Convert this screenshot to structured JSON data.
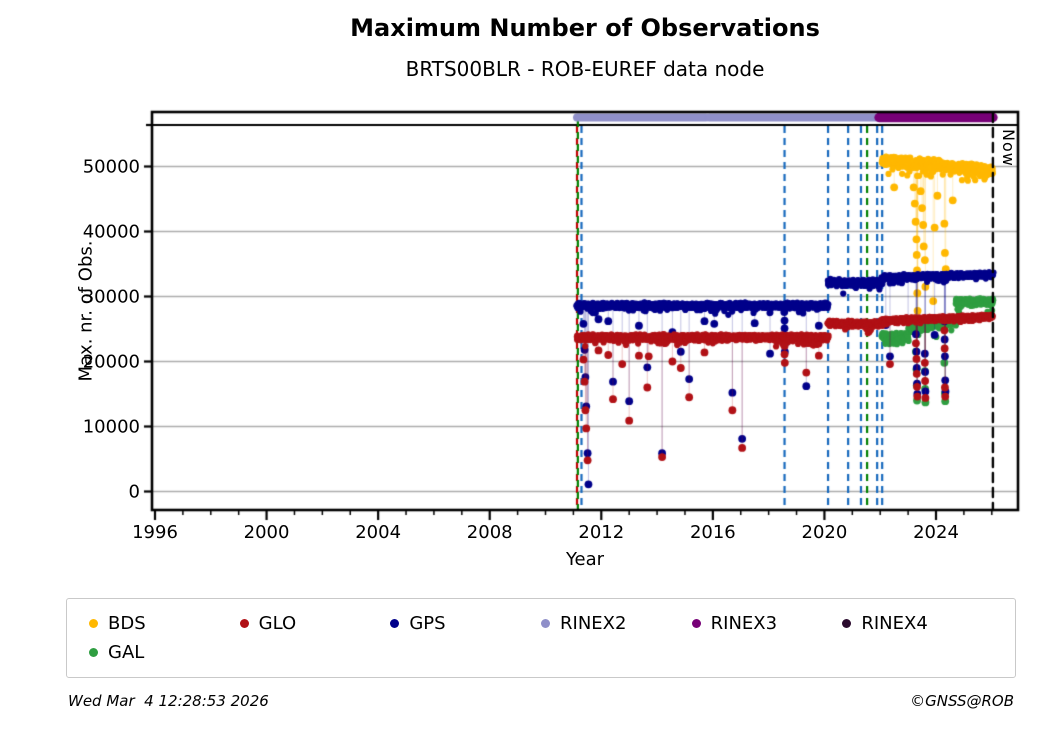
{
  "header": {
    "title": "Maximum Number of Observations",
    "subtitle": "BRTS00BLR - ROB-EUREF data node"
  },
  "footer": {
    "timestamp": "Wed Mar  4 12:28:53 2026",
    "copyright": "©GNSS@ROB"
  },
  "chart_data": {
    "type": "scatter",
    "title": "Maximum Number of Observations",
    "subtitle": "BRTS00BLR - ROB-EUREF data node",
    "xlabel": "Year",
    "ylabel": "Max. nr. of Obs.",
    "xlim": [
      1995.89,
      2026.94
    ],
    "ylim": [
      -2850,
      58380
    ],
    "grid": "horizontal-gray",
    "x_major_ticks": [
      1996,
      2000,
      2004,
      2008,
      2012,
      2016,
      2020,
      2024
    ],
    "x_tick_labels": [
      "1996",
      "2000",
      "2004",
      "2008",
      "2012",
      "2016",
      "2020",
      "2024"
    ],
    "x_minor_from": 1996,
    "x_minor_to": 2026,
    "y_major_ticks": [
      0,
      10000,
      20000,
      30000,
      40000,
      50000
    ],
    "y_tick_labels": [
      "0",
      "10000",
      "20000",
      "30000",
      "40000",
      "50000"
    ],
    "now_line": {
      "x": 2026.04,
      "label": "Now",
      "color": "#000000"
    },
    "rinex_bars": [
      {
        "label": "RINEX2",
        "from": 2011.13,
        "to": 2021.96,
        "color": "#8F8FC9",
        "gaps": [
          2015.8
        ]
      },
      {
        "label": "RINEX3",
        "from": 2021.96,
        "to": 2026.04,
        "color": "#770077",
        "gaps": []
      }
    ],
    "event_lines": [
      {
        "x": 2011.13,
        "color": "#C00000",
        "full": true
      },
      {
        "x": 2011.16,
        "color": "#008000",
        "full": true,
        "dash_offset": 6
      },
      {
        "x": 2011.29,
        "color": "#1769BD"
      },
      {
        "x": 2018.57,
        "color": "#1769BD"
      },
      {
        "x": 2020.13,
        "color": "#1769BD"
      },
      {
        "x": 2020.85,
        "color": "#1769BD"
      },
      {
        "x": 2021.31,
        "color": "#1769BD"
      },
      {
        "x": 2021.53,
        "color": "#008000"
      },
      {
        "x": 2021.89,
        "color": "#1769BD"
      },
      {
        "x": 2022.07,
        "color": "#1769BD"
      }
    ],
    "series": [
      {
        "name": "BDS",
        "color": "#FFB800",
        "segments": [
          {
            "from": 2022.07,
            "to": 2026.04,
            "level": 50900,
            "level_end": 49400,
            "spread": 800
          }
        ],
        "outliers": [
          [
            2022.5,
            46800
          ],
          [
            2023.2,
            46800
          ],
          [
            2023.24,
            44300
          ],
          [
            2023.27,
            41500
          ],
          [
            2023.3,
            38800
          ],
          [
            2023.31,
            36400
          ],
          [
            2023.32,
            34000
          ],
          [
            2023.33,
            30500
          ],
          [
            2023.34,
            27800
          ],
          [
            2023.35,
            25400
          ],
          [
            2023.45,
            46200
          ],
          [
            2023.5,
            43600
          ],
          [
            2023.54,
            41000
          ],
          [
            2023.56,
            37700
          ],
          [
            2023.6,
            35600
          ],
          [
            2023.62,
            31500
          ],
          [
            2023.9,
            29300
          ],
          [
            2023.95,
            40600
          ],
          [
            2024.05,
            45500
          ],
          [
            2024.3,
            41200
          ],
          [
            2024.32,
            36700
          ],
          [
            2024.35,
            34200
          ],
          [
            2024.6,
            44800
          ]
        ]
      },
      {
        "name": "GAL",
        "color": "#2F9E41",
        "segments": [
          {
            "from": 2022.07,
            "to": 2023.0,
            "level": 23800,
            "spread": 600
          },
          {
            "from": 2023.0,
            "to": 2024.7,
            "level": 25000,
            "level_end": 26200,
            "spread": 650
          },
          {
            "from": 2024.7,
            "to": 2026.04,
            "level": 29200,
            "spread": 550
          }
        ],
        "outliers": [
          [
            2023.28,
            21500
          ],
          [
            2023.3,
            18800
          ],
          [
            2023.31,
            16300
          ],
          [
            2023.32,
            14000
          ],
          [
            2023.6,
            18500
          ],
          [
            2023.61,
            15800
          ],
          [
            2023.62,
            13700
          ],
          [
            2024.3,
            19800
          ],
          [
            2024.32,
            15100
          ],
          [
            2024.33,
            13900
          ]
        ]
      },
      {
        "name": "GPS",
        "color": "#00008B",
        "segments": [
          {
            "from": 2011.13,
            "to": 2020.13,
            "level": 28600,
            "spread": 420
          },
          {
            "from": 2020.13,
            "to": 2022.07,
            "level": 32100,
            "spread": 520
          },
          {
            "from": 2022.07,
            "to": 2026.04,
            "level": 32900,
            "level_end": 33400,
            "spread": 380
          }
        ],
        "outliers": [
          [
            2011.36,
            25800
          ],
          [
            2011.4,
            21800
          ],
          [
            2011.43,
            17600
          ],
          [
            2011.46,
            13100
          ],
          [
            2011.51,
            5900
          ],
          [
            2011.54,
            1100
          ],
          [
            2011.9,
            26500
          ],
          [
            2012.25,
            26200
          ],
          [
            2012.42,
            16900
          ],
          [
            2012.75,
            23800
          ],
          [
            2013.0,
            13900
          ],
          [
            2013.35,
            25500
          ],
          [
            2013.65,
            19100
          ],
          [
            2014.18,
            5900
          ],
          [
            2014.55,
            24500
          ],
          [
            2014.85,
            21500
          ],
          [
            2015.15,
            17300
          ],
          [
            2015.7,
            26200
          ],
          [
            2016.05,
            25800
          ],
          [
            2016.7,
            15200
          ],
          [
            2017.05,
            8100
          ],
          [
            2017.5,
            25900
          ],
          [
            2018.05,
            21200
          ],
          [
            2018.56,
            27600
          ],
          [
            2018.57,
            26300
          ],
          [
            2018.57,
            25100
          ],
          [
            2018.57,
            23900
          ],
          [
            2018.58,
            22700
          ],
          [
            2018.58,
            21500
          ],
          [
            2019.35,
            16200
          ],
          [
            2019.8,
            25500
          ],
          [
            2022.2,
            25600
          ],
          [
            2022.35,
            20800
          ],
          [
            2023.0,
            26200
          ],
          [
            2023.28,
            24200
          ],
          [
            2023.3,
            21500
          ],
          [
            2023.31,
            19000
          ],
          [
            2023.32,
            16600
          ],
          [
            2023.33,
            15000
          ],
          [
            2023.6,
            21200
          ],
          [
            2023.61,
            18400
          ],
          [
            2023.62,
            15400
          ],
          [
            2023.95,
            24100
          ],
          [
            2024.3,
            26200
          ],
          [
            2024.31,
            23400
          ],
          [
            2024.32,
            20800
          ],
          [
            2024.33,
            17100
          ],
          [
            2024.34,
            15400
          ]
        ]
      },
      {
        "name": "GLO",
        "color": "#B11116",
        "segments": [
          {
            "from": 2011.13,
            "to": 2020.13,
            "level": 23700,
            "spread": 430
          },
          {
            "from": 2020.13,
            "to": 2022.07,
            "level": 25800,
            "spread": 430
          },
          {
            "from": 2022.07,
            "to": 2026.04,
            "level": 26300,
            "level_end": 26900,
            "spread": 340
          }
        ],
        "outliers": [
          [
            2011.36,
            20300
          ],
          [
            2011.4,
            16900
          ],
          [
            2011.43,
            12500
          ],
          [
            2011.46,
            9700
          ],
          [
            2011.51,
            4800
          ],
          [
            2011.9,
            21700
          ],
          [
            2012.25,
            21000
          ],
          [
            2012.42,
            14200
          ],
          [
            2012.75,
            19600
          ],
          [
            2013.0,
            10900
          ],
          [
            2013.35,
            20900
          ],
          [
            2013.65,
            16000
          ],
          [
            2013.7,
            20800
          ],
          [
            2014.18,
            5300
          ],
          [
            2014.55,
            20000
          ],
          [
            2014.85,
            19000
          ],
          [
            2015.15,
            14500
          ],
          [
            2015.7,
            21400
          ],
          [
            2016.7,
            12500
          ],
          [
            2017.05,
            6700
          ],
          [
            2018.57,
            22400
          ],
          [
            2018.57,
            21100
          ],
          [
            2018.58,
            19800
          ],
          [
            2019.35,
            18300
          ],
          [
            2019.8,
            20900
          ],
          [
            2022.35,
            19600
          ],
          [
            2023.28,
            22800
          ],
          [
            2023.3,
            20400
          ],
          [
            2023.31,
            18100
          ],
          [
            2023.32,
            16100
          ],
          [
            2023.33,
            14600
          ],
          [
            2023.6,
            19800
          ],
          [
            2023.61,
            17000
          ],
          [
            2023.62,
            14400
          ],
          [
            2024.3,
            24800
          ],
          [
            2024.31,
            22000
          ],
          [
            2024.32,
            16000
          ],
          [
            2024.33,
            14600
          ]
        ]
      }
    ],
    "legend": {
      "position": "bottom",
      "items": [
        {
          "label": "BDS",
          "color": "#FFB800"
        },
        {
          "label": "GLO",
          "color": "#B11116"
        },
        {
          "label": "GPS",
          "color": "#00008B"
        },
        {
          "label": "RINEX2",
          "color": "#8F8FC9"
        },
        {
          "label": "RINEX3",
          "color": "#770077"
        },
        {
          "label": "RINEX4",
          "color": "#2B0B2E"
        },
        {
          "label": "GAL",
          "color": "#2F9E41"
        }
      ]
    }
  }
}
